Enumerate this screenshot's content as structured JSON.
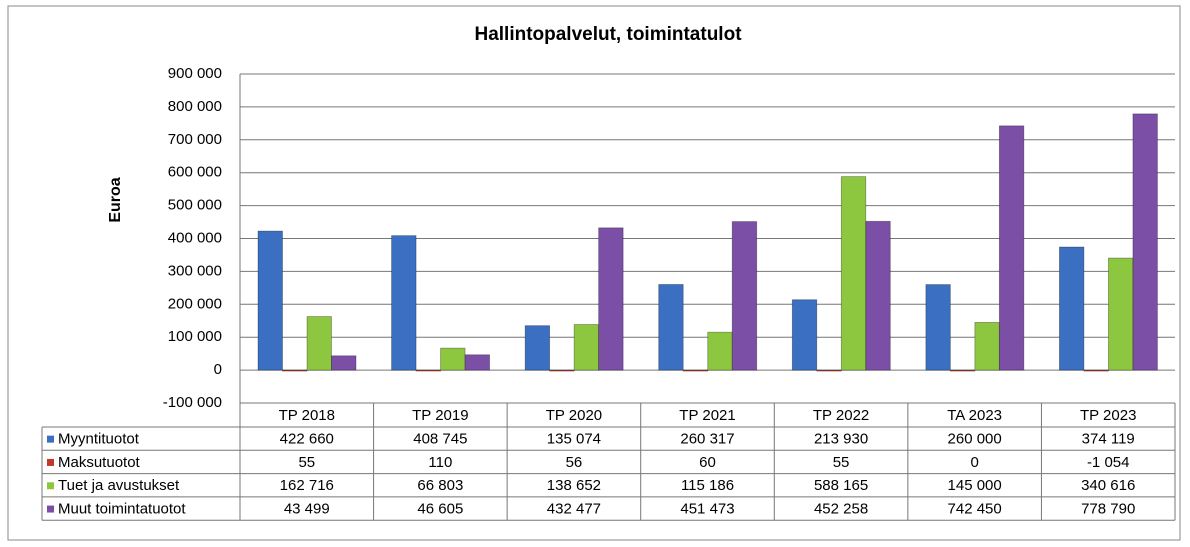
{
  "chart_data": {
    "type": "bar",
    "title": "Hallintopalvelut, toimintatulot",
    "y_label": "Euroa",
    "categories": [
      "TP 2018",
      "TP 2019",
      "TP 2020",
      "TP 2021",
      "TP 2022",
      "TA 2023",
      "TP 2023"
    ],
    "series": [
      {
        "name": "Myyntituotot",
        "color": "#3b6fc2",
        "values": [
          422660,
          408745,
          135074,
          260317,
          213930,
          260000,
          374119
        ],
        "value_labels": [
          "422 660",
          "408 745",
          "135 074",
          "260 317",
          "213 930",
          "260 000",
          "374 119"
        ]
      },
      {
        "name": "Maksutuotot",
        "color": "#c0392b",
        "values": [
          55,
          110,
          56,
          60,
          55,
          0,
          -1054
        ],
        "value_labels": [
          "55",
          "110",
          "56",
          "60",
          "55",
          "0",
          "-1 054"
        ]
      },
      {
        "name": "Tuet ja avustukset",
        "color": "#8dc63f",
        "values": [
          162716,
          66803,
          138652,
          115186,
          588165,
          145000,
          340616
        ],
        "value_labels": [
          "162 716",
          "66 803",
          "138 652",
          "115 186",
          "588 165",
          "145 000",
          "340 616"
        ]
      },
      {
        "name": "Muut toimintatuotot",
        "color": "#7b4fa6",
        "values": [
          43499,
          46605,
          432477,
          451473,
          452258,
          742450,
          778790
        ],
        "value_labels": [
          "43 499",
          "46 605",
          "432 477",
          "451 473",
          "452 258",
          "742 450",
          "778 790"
        ]
      }
    ],
    "ylim": [
      -100000,
      900000
    ],
    "yticks": [
      {
        "value": -100000,
        "label": "-100 000"
      },
      0,
      {
        "value": 100000,
        "label": "100 000"
      },
      {
        "value": 200000,
        "label": "200 000"
      },
      {
        "value": 300000,
        "label": "300 000"
      },
      {
        "value": 400000,
        "label": "400 000"
      },
      {
        "value": 500000,
        "label": "500 000"
      },
      {
        "value": 600000,
        "label": "600 000"
      },
      {
        "value": 700000,
        "label": "700 000"
      },
      {
        "value": 800000,
        "label": "800 000"
      },
      {
        "value": 900000,
        "label": "900 000"
      }
    ],
    "grid": true
  }
}
